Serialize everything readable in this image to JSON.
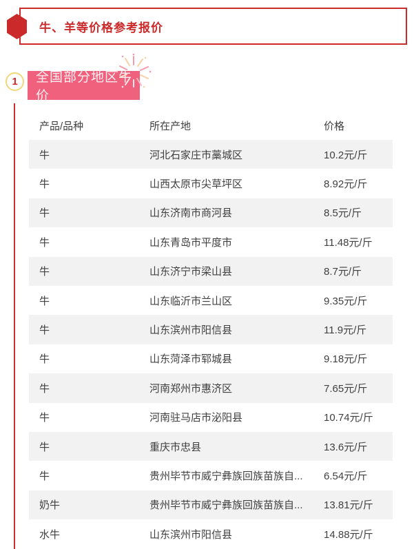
{
  "page": {
    "title": "牛、羊等价格参考报价"
  },
  "section": {
    "number": "1",
    "label": "全国部分地区牛价"
  },
  "table": {
    "columns": [
      "产品/品种",
      "所在产地",
      "价格"
    ],
    "rows": [
      {
        "product": "牛",
        "origin": "河北石家庄市藁城区",
        "price": "10.2元/斤"
      },
      {
        "product": "牛",
        "origin": "山西太原市尖草坪区",
        "price": "8.92元/斤"
      },
      {
        "product": "牛",
        "origin": "山东济南市商河县",
        "price": "8.5元/斤"
      },
      {
        "product": "牛",
        "origin": "山东青岛市平度市",
        "price": "11.48元/斤"
      },
      {
        "product": "牛",
        "origin": "山东济宁市梁山县",
        "price": "8.7元/斤"
      },
      {
        "product": "牛",
        "origin": "山东临沂市兰山区",
        "price": "9.35元/斤"
      },
      {
        "product": "牛",
        "origin": "山东滨州市阳信县",
        "price": "11.9元/斤"
      },
      {
        "product": "牛",
        "origin": "山东菏泽市郓城县",
        "price": "9.18元/斤"
      },
      {
        "product": "牛",
        "origin": "河南郑州市惠济区",
        "price": "7.65元/斤"
      },
      {
        "product": "牛",
        "origin": "河南驻马店市泌阳县",
        "price": "10.74元/斤"
      },
      {
        "product": "牛",
        "origin": "重庆市忠县",
        "price": "13.6元/斤"
      },
      {
        "product": "牛",
        "origin": "贵州毕节市威宁彝族回族苗族自...",
        "price": "6.54元/斤"
      },
      {
        "product": "奶牛",
        "origin": "贵州毕节市威宁彝族回族苗族自...",
        "price": "13.81元/斤"
      },
      {
        "product": "水牛",
        "origin": "山东滨州市阳信县",
        "price": "14.88元/斤"
      }
    ]
  },
  "colors": {
    "accent_red": "#cb2a2a",
    "section_pink": "#f0617d",
    "row_alt_gray": "#f2f2f2",
    "badge_gold": "#f2d678",
    "table_text": "#3f3f3f"
  }
}
